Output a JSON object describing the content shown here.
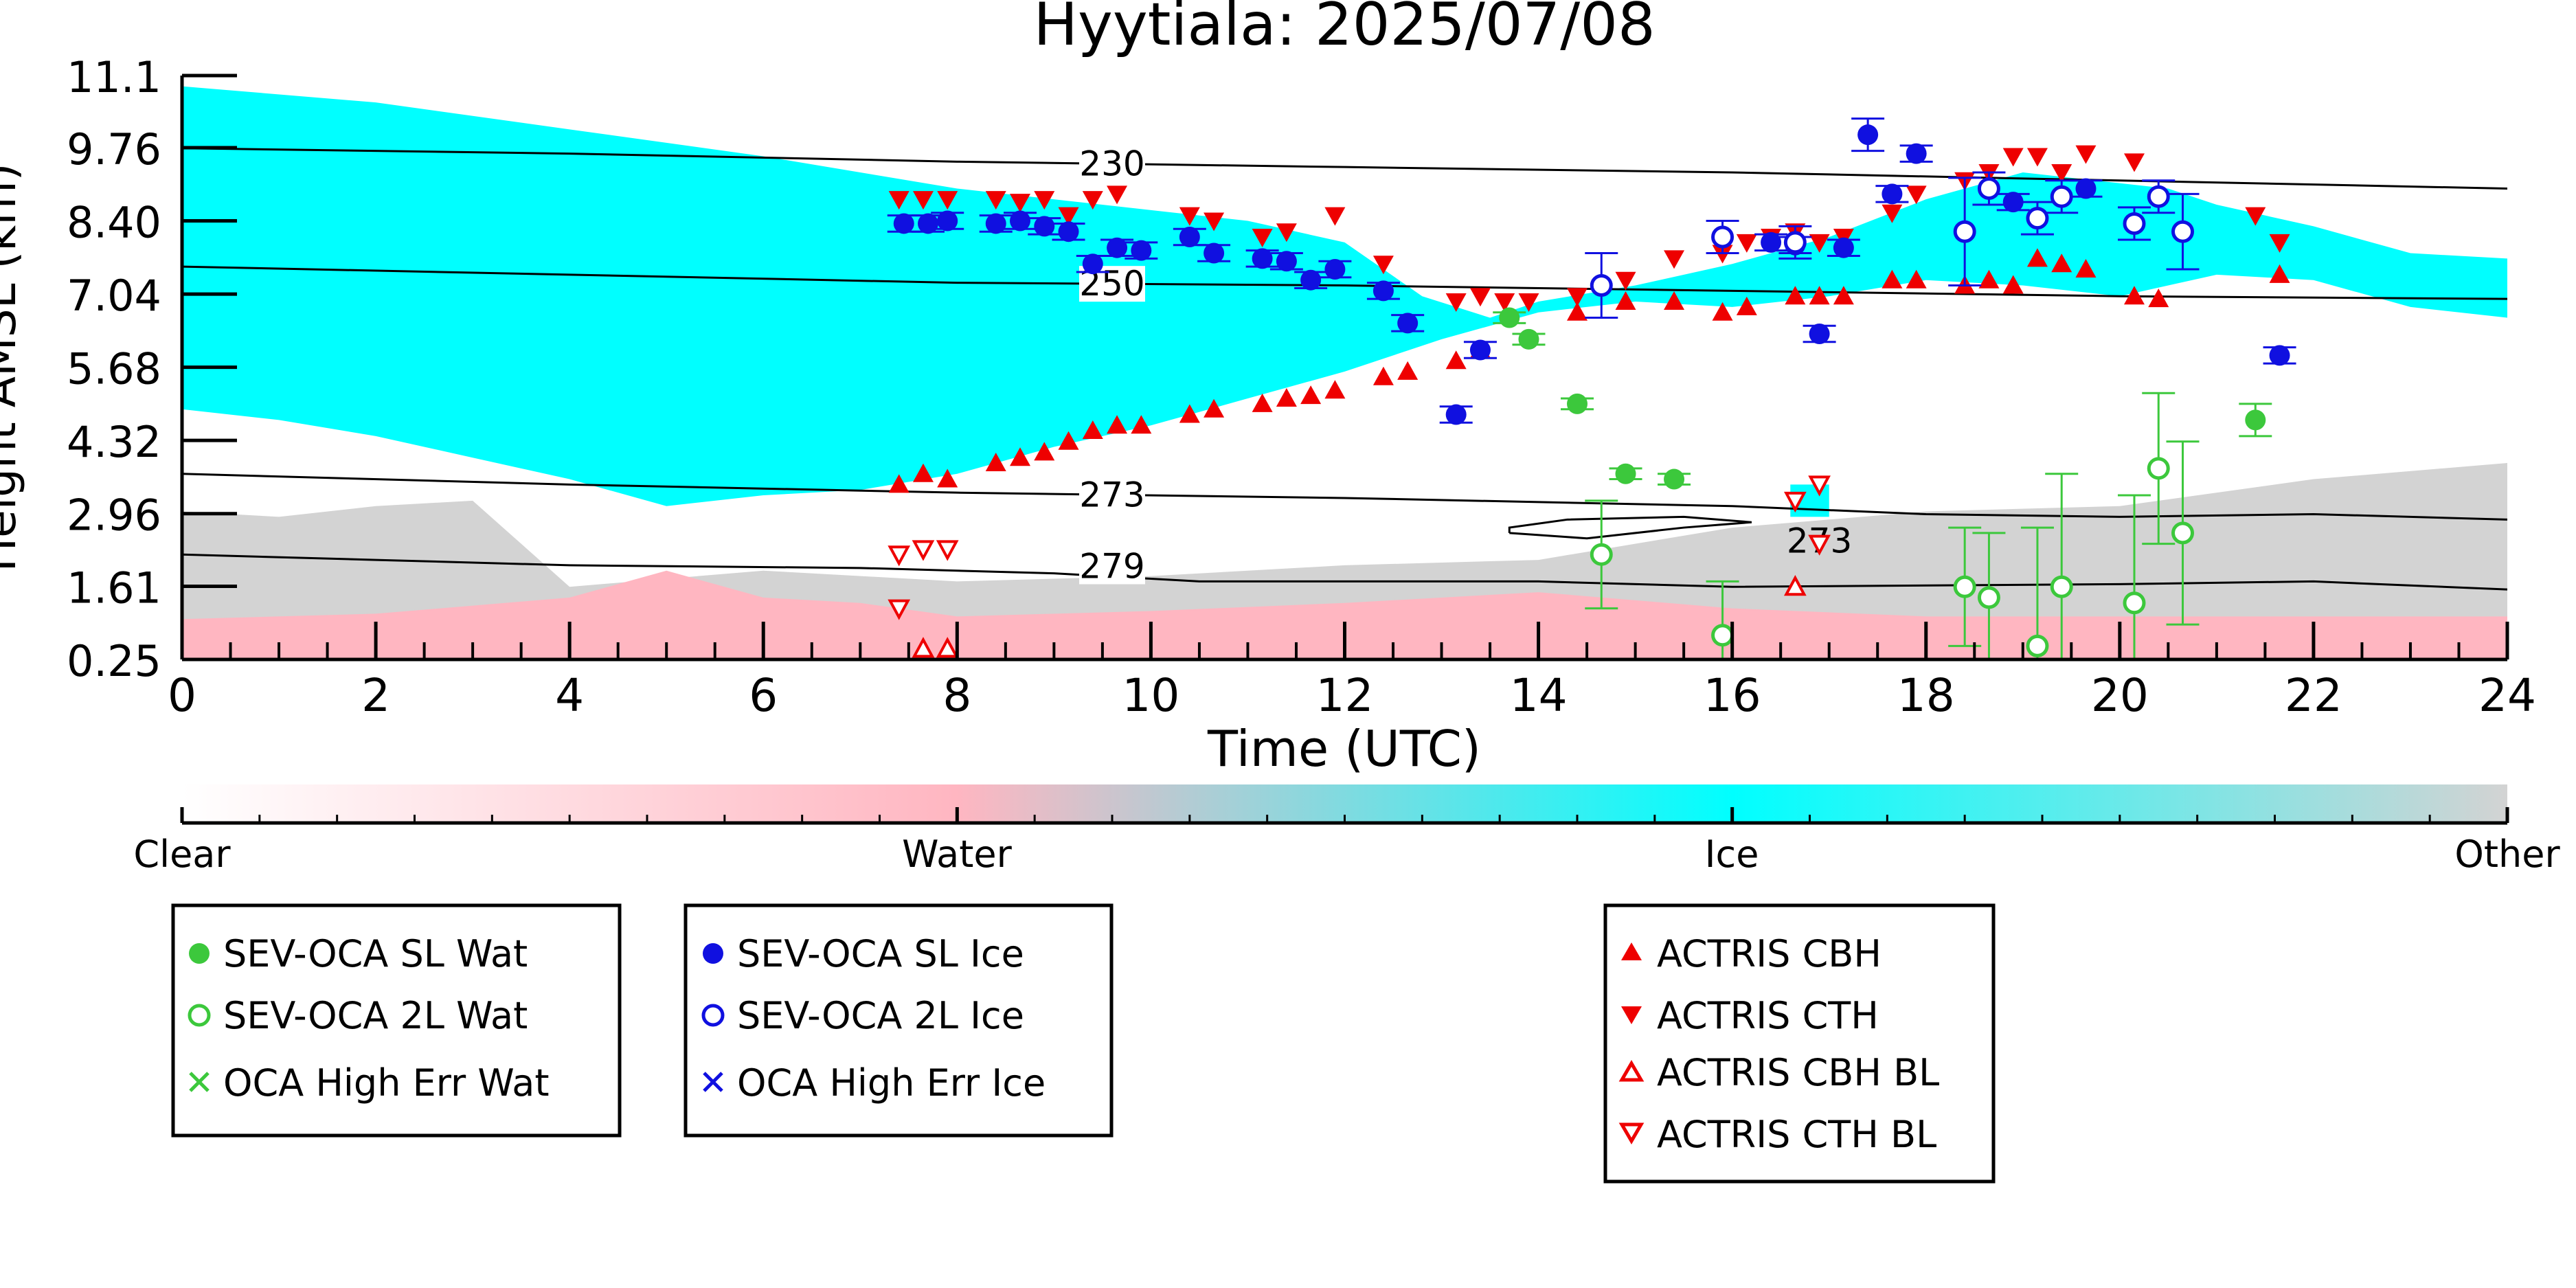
{
  "chart_data": {
    "type": "scatter",
    "title": "Hyytiala: 2025/07/08",
    "xlabel": "Time (UTC)",
    "ylabel": "Height AMSL (km)",
    "xlim": [
      0,
      24
    ],
    "ylim": [
      0.25,
      11.1
    ],
    "x_ticks": [
      0,
      2,
      4,
      6,
      8,
      10,
      12,
      14,
      16,
      18,
      20,
      22,
      24
    ],
    "y_ticks": [
      "0.25",
      "1.61",
      "2.96",
      "4.32",
      "5.68",
      "7.04",
      "8.40",
      "9.76",
      "11.1"
    ],
    "colorbar": {
      "labels": [
        "Clear",
        "Water",
        "Ice",
        "Other"
      ],
      "colors": [
        "#ffffff",
        "#ffb6c1",
        "#00ffff",
        "#d3d3d3"
      ]
    },
    "contours": [
      {
        "label": "230",
        "points": [
          [
            0,
            9.75
          ],
          [
            4,
            9.65
          ],
          [
            8,
            9.5
          ],
          [
            12,
            9.4
          ],
          [
            16,
            9.3
          ],
          [
            20,
            9.15
          ],
          [
            24,
            9.0
          ]
        ]
      },
      {
        "label": "250",
        "points": [
          [
            0,
            7.55
          ],
          [
            4,
            7.4
          ],
          [
            8,
            7.25
          ],
          [
            12,
            7.2
          ],
          [
            16,
            7.1
          ],
          [
            20,
            7.0
          ],
          [
            24,
            6.95
          ]
        ]
      },
      {
        "label": "273",
        "points": [
          [
            0,
            3.7
          ],
          [
            4,
            3.5
          ],
          [
            8,
            3.35
          ],
          [
            12,
            3.25
          ],
          [
            16,
            3.1
          ],
          [
            18,
            2.95
          ],
          [
            20,
            2.9
          ],
          [
            22,
            2.95
          ],
          [
            24,
            2.85
          ]
        ]
      },
      {
        "label": "279",
        "points": [
          [
            0,
            2.2
          ],
          [
            2,
            2.1
          ],
          [
            4,
            2.0
          ],
          [
            7,
            1.95
          ],
          [
            9,
            1.85
          ],
          [
            10.5,
            1.7
          ],
          [
            14,
            1.7
          ],
          [
            16,
            1.6
          ],
          [
            20,
            1.65
          ],
          [
            22,
            1.7
          ],
          [
            24,
            1.55
          ]
        ]
      }
    ],
    "contour_loop": {
      "label": "273",
      "points": [
        [
          13.7,
          2.6
        ],
        [
          14.5,
          2.5
        ],
        [
          15.5,
          2.7
        ],
        [
          16.2,
          2.8
        ],
        [
          15.5,
          2.9
        ],
        [
          14.3,
          2.85
        ],
        [
          13.7,
          2.7
        ],
        [
          13.7,
          2.6
        ]
      ]
    },
    "regions": {
      "ice": {
        "top": [
          [
            0,
            10.9
          ],
          [
            2,
            10.6
          ],
          [
            4,
            10.1
          ],
          [
            6,
            9.6
          ],
          [
            8,
            9.0
          ],
          [
            10,
            8.6
          ],
          [
            11,
            8.4
          ],
          [
            12,
            8.0
          ],
          [
            12.8,
            7.0
          ],
          [
            13.5,
            6.6
          ],
          [
            14,
            6.9
          ],
          [
            15,
            7.2
          ],
          [
            16,
            7.6
          ],
          [
            17,
            8.1
          ],
          [
            18,
            8.8
          ],
          [
            19,
            9.3
          ],
          [
            20.5,
            9.0
          ],
          [
            21,
            8.7
          ],
          [
            22,
            8.3
          ],
          [
            23,
            7.8
          ],
          [
            24,
            7.7
          ]
        ],
        "bottom": [
          [
            24,
            6.6
          ],
          [
            23,
            6.8
          ],
          [
            22,
            7.3
          ],
          [
            21,
            7.4
          ],
          [
            20,
            7.0
          ],
          [
            19,
            7.2
          ],
          [
            18,
            7.3
          ],
          [
            17,
            7.0
          ],
          [
            16,
            6.8
          ],
          [
            15,
            6.9
          ],
          [
            14,
            6.7
          ],
          [
            13,
            6.2
          ],
          [
            12,
            5.6
          ],
          [
            11,
            5.1
          ],
          [
            10,
            4.6
          ],
          [
            9,
            4.2
          ],
          [
            8,
            3.7
          ],
          [
            7,
            3.4
          ],
          [
            6,
            3.3
          ],
          [
            5,
            3.1
          ],
          [
            4,
            3.6
          ],
          [
            3,
            4.0
          ],
          [
            2,
            4.4
          ],
          [
            1,
            4.7
          ],
          [
            0,
            4.9
          ]
        ]
      },
      "ice_patch": {
        "top": [
          [
            16.6,
            3.5
          ],
          [
            17.0,
            3.5
          ]
        ],
        "bottom": [
          [
            17.0,
            2.9
          ],
          [
            16.6,
            2.9
          ]
        ]
      },
      "other": {
        "top": [
          [
            0,
            3.0
          ],
          [
            1,
            2.9
          ],
          [
            2,
            3.1
          ],
          [
            3,
            3.2
          ],
          [
            4,
            1.6
          ],
          [
            6,
            1.9
          ],
          [
            8,
            1.7
          ],
          [
            10,
            1.8
          ],
          [
            12,
            2.0
          ],
          [
            14,
            2.1
          ],
          [
            16,
            2.7
          ],
          [
            18,
            3.0
          ],
          [
            20,
            3.1
          ],
          [
            22,
            3.6
          ],
          [
            24,
            3.9
          ]
        ],
        "bottom": [
          [
            24,
            0.25
          ],
          [
            0,
            0.25
          ]
        ]
      },
      "water": {
        "top": [
          [
            0,
            1.0
          ],
          [
            2,
            1.1
          ],
          [
            4,
            1.4
          ],
          [
            5,
            1.9
          ],
          [
            6,
            1.4
          ],
          [
            7,
            1.3
          ],
          [
            8,
            1.05
          ],
          [
            10,
            1.15
          ],
          [
            12,
            1.3
          ],
          [
            14,
            1.5
          ],
          [
            16,
            1.2
          ],
          [
            18,
            1.05
          ],
          [
            24,
            1.05
          ]
        ],
        "bottom": [
          [
            24,
            0.25
          ],
          [
            0,
            0.25
          ]
        ]
      }
    },
    "series": [
      {
        "name": "SEV-OCA SL Wat",
        "marker": "circle-filled",
        "color": "#3cc83c",
        "points": [
          [
            13.7,
            6.6
          ],
          [
            13.9,
            6.2
          ],
          [
            14.4,
            5.0
          ],
          [
            14.9,
            3.7
          ],
          [
            15.4,
            3.6
          ],
          [
            21.4,
            4.7
          ]
        ],
        "err": [
          0.1,
          0.1,
          0.1,
          0.1,
          0.1,
          0.3
        ]
      },
      {
        "name": "SEV-OCA 2L Wat",
        "marker": "circle-open",
        "color": "#3cc83c",
        "points": [
          [
            14.65,
            2.2
          ],
          [
            15.9,
            0.7
          ],
          [
            18.4,
            1.6
          ],
          [
            18.65,
            1.4
          ],
          [
            19.15,
            0.5
          ],
          [
            19.4,
            1.6
          ],
          [
            20.15,
            1.3
          ],
          [
            20.4,
            3.8
          ],
          [
            20.65,
            2.6
          ]
        ],
        "err": [
          1.0,
          1.0,
          1.1,
          1.2,
          2.2,
          2.1,
          2.0,
          1.4,
          1.7
        ]
      },
      {
        "name": "OCA High Err Wat",
        "marker": "x",
        "color": "#3cc83c",
        "points": []
      },
      {
        "name": "SEV-OCA SL Ice",
        "marker": "circle-filled",
        "color": "#1010e0",
        "points": [
          [
            7.45,
            8.35
          ],
          [
            7.7,
            8.35
          ],
          [
            7.9,
            8.4
          ],
          [
            8.4,
            8.35
          ],
          [
            8.65,
            8.4
          ],
          [
            8.9,
            8.3
          ],
          [
            9.15,
            8.2
          ],
          [
            9.4,
            7.6
          ],
          [
            9.65,
            7.9
          ],
          [
            9.9,
            7.85
          ],
          [
            10.4,
            8.1
          ],
          [
            10.65,
            7.8
          ],
          [
            11.15,
            7.7
          ],
          [
            11.4,
            7.65
          ],
          [
            11.65,
            7.3
          ],
          [
            11.9,
            7.5
          ],
          [
            12.4,
            7.1
          ],
          [
            12.65,
            6.5
          ],
          [
            13.15,
            4.8
          ],
          [
            13.4,
            6.0
          ],
          [
            16.4,
            8.0
          ],
          [
            16.65,
            7.95
          ],
          [
            17.15,
            7.9
          ],
          [
            16.9,
            6.3
          ],
          [
            17.4,
            10.0
          ],
          [
            17.65,
            8.9
          ],
          [
            17.9,
            9.65
          ],
          [
            18.9,
            8.75
          ],
          [
            19.65,
            9.0
          ],
          [
            21.65,
            5.9
          ]
        ],
        "err": [
          0.15,
          0.15,
          0.15,
          0.15,
          0.15,
          0.15,
          0.15,
          0.15,
          0.15,
          0.15,
          0.15,
          0.15,
          0.15,
          0.15,
          0.15,
          0.15,
          0.15,
          0.15,
          0.15,
          0.15,
          0.15,
          0.15,
          0.15,
          0.15,
          0.3,
          0.15,
          0.15,
          0.15,
          0.15,
          0.15
        ]
      },
      {
        "name": "SEV-OCA 2L Ice",
        "marker": "circle-open",
        "color": "#1010e0",
        "points": [
          [
            14.65,
            7.2
          ],
          [
            15.9,
            8.1
          ],
          [
            16.65,
            8.0
          ],
          [
            18.4,
            8.2
          ],
          [
            18.65,
            9.0
          ],
          [
            19.15,
            8.45
          ],
          [
            19.4,
            8.85
          ],
          [
            20.15,
            8.35
          ],
          [
            20.4,
            8.85
          ],
          [
            20.65,
            8.2
          ]
        ],
        "err": [
          0.6,
          0.3,
          0.3,
          1.0,
          0.3,
          0.3,
          0.3,
          0.3,
          0.3,
          0.7
        ]
      },
      {
        "name": "OCA High Err Ice",
        "marker": "x",
        "color": "#1010e0",
        "points": []
      },
      {
        "name": "ACTRIS CBH",
        "marker": "triangle-up-filled",
        "color": "#ee0000",
        "points": [
          [
            7.4,
            3.5
          ],
          [
            7.65,
            3.7
          ],
          [
            7.9,
            3.6
          ],
          [
            8.4,
            3.9
          ],
          [
            8.65,
            4.0
          ],
          [
            8.9,
            4.1
          ],
          [
            9.15,
            4.3
          ],
          [
            9.4,
            4.5
          ],
          [
            9.65,
            4.6
          ],
          [
            9.9,
            4.6
          ],
          [
            10.4,
            4.8
          ],
          [
            10.65,
            4.9
          ],
          [
            11.15,
            5.0
          ],
          [
            11.4,
            5.1
          ],
          [
            11.65,
            5.15
          ],
          [
            11.9,
            5.25
          ],
          [
            12.4,
            5.5
          ],
          [
            12.65,
            5.6
          ],
          [
            13.15,
            5.8
          ],
          [
            13.4,
            6.0
          ],
          [
            14.4,
            6.7
          ],
          [
            14.9,
            6.9
          ],
          [
            15.4,
            6.9
          ],
          [
            15.9,
            6.7
          ],
          [
            16.15,
            6.8
          ],
          [
            16.65,
            7.0
          ],
          [
            16.9,
            7.0
          ],
          [
            17.15,
            7.0
          ],
          [
            17.65,
            7.3
          ],
          [
            17.9,
            7.3
          ],
          [
            18.4,
            7.2
          ],
          [
            18.65,
            7.3
          ],
          [
            18.9,
            7.2
          ],
          [
            19.15,
            7.7
          ],
          [
            19.4,
            7.6
          ],
          [
            19.65,
            7.5
          ],
          [
            20.15,
            7.0
          ],
          [
            20.4,
            6.95
          ],
          [
            21.65,
            7.4
          ]
        ]
      },
      {
        "name": "ACTRIS CTH",
        "marker": "triangle-down-filled",
        "color": "#ee0000",
        "points": [
          [
            7.4,
            8.8
          ],
          [
            7.65,
            8.8
          ],
          [
            7.9,
            8.8
          ],
          [
            8.4,
            8.8
          ],
          [
            8.65,
            8.75
          ],
          [
            8.9,
            8.8
          ],
          [
            9.15,
            8.5
          ],
          [
            9.4,
            8.8
          ],
          [
            9.65,
            8.9
          ],
          [
            10.4,
            8.5
          ],
          [
            10.65,
            8.4
          ],
          [
            11.15,
            8.1
          ],
          [
            11.4,
            8.2
          ],
          [
            11.9,
            8.5
          ],
          [
            12.4,
            7.6
          ],
          [
            13.15,
            6.9
          ],
          [
            13.4,
            7.0
          ],
          [
            13.65,
            6.9
          ],
          [
            13.9,
            6.9
          ],
          [
            14.4,
            7.0
          ],
          [
            14.9,
            7.3
          ],
          [
            15.4,
            7.7
          ],
          [
            15.9,
            7.8
          ],
          [
            16.15,
            8.0
          ],
          [
            16.4,
            8.1
          ],
          [
            16.65,
            8.2
          ],
          [
            16.9,
            8.0
          ],
          [
            17.15,
            8.1
          ],
          [
            17.65,
            8.55
          ],
          [
            17.9,
            8.9
          ],
          [
            18.4,
            9.15
          ],
          [
            18.65,
            9.3
          ],
          [
            18.9,
            9.6
          ],
          [
            19.15,
            9.6
          ],
          [
            19.4,
            9.3
          ],
          [
            19.65,
            9.65
          ],
          [
            20.15,
            9.5
          ],
          [
            21.4,
            8.5
          ],
          [
            21.65,
            8.0
          ]
        ]
      },
      {
        "name": "ACTRIS CBH BL",
        "marker": "triangle-up-open",
        "color": "#ee0000",
        "points": [
          [
            7.65,
            0.45
          ],
          [
            7.9,
            0.45
          ],
          [
            16.65,
            1.6
          ]
        ]
      },
      {
        "name": "ACTRIS CTH BL",
        "marker": "triangle-down-open",
        "color": "#ee0000",
        "points": [
          [
            7.4,
            2.2
          ],
          [
            7.65,
            2.3
          ],
          [
            7.9,
            2.3
          ],
          [
            7.4,
            1.2
          ],
          [
            16.65,
            3.2
          ],
          [
            16.9,
            3.5
          ],
          [
            16.9,
            2.4
          ]
        ]
      }
    ],
    "legend_placement": "below"
  }
}
